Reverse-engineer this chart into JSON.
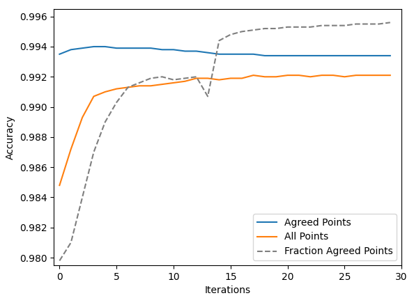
{
  "title": "",
  "xlabel": "Iterations",
  "ylabel": "Accuracy",
  "ylim": [
    0.9795,
    0.9965
  ],
  "xlim": [
    -0.5,
    30
  ],
  "yticks": [
    0.98,
    0.982,
    0.984,
    0.986,
    0.988,
    0.99,
    0.992,
    0.994,
    0.996
  ],
  "xticks": [
    0,
    5,
    10,
    15,
    20,
    25,
    30
  ],
  "agreed_points": {
    "x": [
      0,
      1,
      2,
      3,
      4,
      5,
      6,
      7,
      8,
      9,
      10,
      11,
      12,
      13,
      14,
      15,
      16,
      17,
      18,
      19,
      20,
      21,
      22,
      23,
      24,
      25,
      26,
      27,
      28,
      29
    ],
    "y": [
      0.9935,
      0.9938,
      0.9939,
      0.994,
      0.994,
      0.9939,
      0.9939,
      0.9939,
      0.9939,
      0.9938,
      0.9938,
      0.9937,
      0.9937,
      0.9936,
      0.9935,
      0.9935,
      0.9935,
      0.9935,
      0.9934,
      0.9934,
      0.9934,
      0.9934,
      0.9934,
      0.9934,
      0.9934,
      0.9934,
      0.9934,
      0.9934,
      0.9934,
      0.9934
    ],
    "color": "#1f77b4",
    "label": "Agreed Points",
    "linestyle": "-"
  },
  "all_points": {
    "x": [
      0,
      1,
      2,
      3,
      4,
      5,
      6,
      7,
      8,
      9,
      10,
      11,
      12,
      13,
      14,
      15,
      16,
      17,
      18,
      19,
      20,
      21,
      22,
      23,
      24,
      25,
      26,
      27,
      28,
      29
    ],
    "y": [
      0.9848,
      0.9872,
      0.9893,
      0.9907,
      0.991,
      0.9912,
      0.9913,
      0.9914,
      0.9914,
      0.9915,
      0.9916,
      0.9917,
      0.9919,
      0.9919,
      0.9918,
      0.9919,
      0.9919,
      0.9921,
      0.992,
      0.992,
      0.9921,
      0.9921,
      0.992,
      0.9921,
      0.9921,
      0.992,
      0.9921,
      0.9921,
      0.9921,
      0.9921
    ],
    "color": "#ff7f0e",
    "label": "All Points",
    "linestyle": "-"
  },
  "fraction_agreed": {
    "x": [
      0,
      1,
      2,
      3,
      4,
      5,
      6,
      7,
      8,
      9,
      10,
      11,
      12,
      13,
      14,
      15,
      16,
      17,
      18,
      19,
      20,
      21,
      22,
      23,
      24,
      25,
      26,
      27,
      28,
      29
    ],
    "y": [
      0.9798,
      0.981,
      0.984,
      0.987,
      0.989,
      0.9903,
      0.9913,
      0.9916,
      0.9919,
      0.992,
      0.9918,
      0.9919,
      0.992,
      0.9907,
      0.9944,
      0.9948,
      0.995,
      0.9951,
      0.9952,
      0.9952,
      0.9953,
      0.9953,
      0.9953,
      0.9954,
      0.9954,
      0.9954,
      0.9955,
      0.9955,
      0.9955,
      0.9956
    ],
    "color": "#7f7f7f",
    "label": "Fraction Agreed Points",
    "linestyle": "--"
  },
  "legend_loc": "lower right",
  "figsize": [
    5.94,
    4.28
  ],
  "dpi": 100
}
